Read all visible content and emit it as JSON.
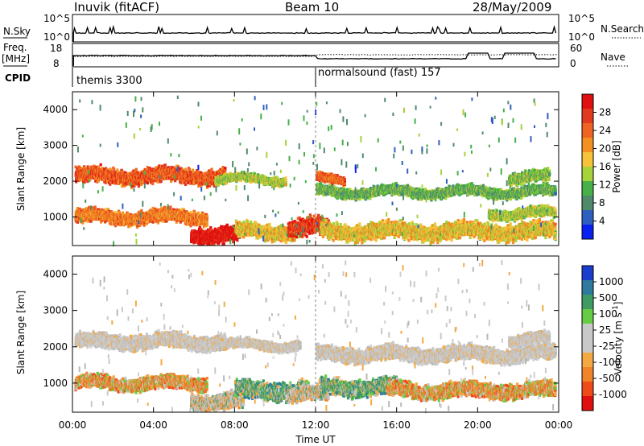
{
  "header": {
    "station": "Inuvik (fitACF)",
    "beam": "Beam 10",
    "date": "28/May/2009"
  },
  "nsky_panel": {
    "left_label": "N.Sky",
    "right_label": "N.Search",
    "left_ticks": [
      "10^5",
      "10^0"
    ],
    "right_ticks": [
      "10^5",
      "10^0"
    ]
  },
  "freq_panel": {
    "left_label_1": "Freq.",
    "left_label_2": "[MHz]",
    "right_label": "Nave",
    "left_ticks": [
      "18",
      "8"
    ],
    "right_ticks": [
      "60",
      "0"
    ]
  },
  "cpid_panel": {
    "label": "CPID",
    "modes": [
      {
        "text": "themis 3300",
        "start_hour": 0
      },
      {
        "text": "normalsound (fast) 157",
        "start_hour": 12
      }
    ]
  },
  "chart_data": [
    {
      "type": "heatmap",
      "panel": "power",
      "ylabel": "Slant Range [km]",
      "xlabel": "",
      "xlim": [
        0,
        24
      ],
      "ylim": [
        200,
        4500
      ],
      "x_ticks": [
        "00:00",
        "04:00",
        "08:00",
        "12:00",
        "16:00",
        "20:00",
        "00:00"
      ],
      "y_ticks": [
        1000,
        2000,
        3000,
        4000
      ],
      "colorbar": {
        "label": "Power [dB]",
        "ticks": [
          "4",
          "8",
          "12",
          "16",
          "20",
          "24",
          "28"
        ],
        "range": [
          0,
          32
        ],
        "colors": [
          "#0a20f0",
          "#2e5fbf",
          "#4f8a6a",
          "#47b049",
          "#a6d23a",
          "#f5c23a",
          "#f39022",
          "#ef6422",
          "#e23a1e",
          "#e01010"
        ]
      },
      "bands": [
        {
          "t0": 0.1,
          "t1": 7.5,
          "r_center": 2150,
          "r_width": 450,
          "level": 0.78
        },
        {
          "t0": 7.0,
          "t1": 10.5,
          "r_center": 2050,
          "r_width": 250,
          "level": 0.45
        },
        {
          "t0": 0.1,
          "t1": 6.6,
          "r_center": 1000,
          "r_width": 400,
          "level": 0.7
        },
        {
          "t0": 5.8,
          "t1": 8.2,
          "r_center": 500,
          "r_width": 500,
          "level": 0.97
        },
        {
          "t0": 8.0,
          "t1": 11.2,
          "r_center": 600,
          "r_width": 450,
          "level": 0.55
        },
        {
          "t0": 10.6,
          "t1": 12.6,
          "r_center": 700,
          "r_width": 550,
          "level": 0.85
        },
        {
          "t0": 12.0,
          "t1": 23.8,
          "r_center": 1700,
          "r_width": 300,
          "level": 0.35
        },
        {
          "t0": 12.0,
          "t1": 13.4,
          "r_center": 2050,
          "r_width": 250,
          "level": 0.75
        },
        {
          "t0": 12.2,
          "t1": 23.8,
          "r_center": 600,
          "r_width": 500,
          "level": 0.55
        },
        {
          "t0": 20.5,
          "t1": 23.8,
          "r_center": 1100,
          "r_width": 300,
          "level": 0.45
        },
        {
          "t0": 21.5,
          "t1": 23.5,
          "r_center": 2100,
          "r_width": 350,
          "level": 0.4
        }
      ]
    },
    {
      "type": "heatmap",
      "panel": "velocity",
      "ylabel": "Slant Range [km]",
      "xlabel": "Time UT",
      "xlim": [
        0,
        24
      ],
      "ylim": [
        200,
        4500
      ],
      "x_ticks": [
        "00:00",
        "04:00",
        "08:00",
        "12:00",
        "16:00",
        "20:00",
        "00:00"
      ],
      "y_ticks": [
        1000,
        2000,
        3000,
        4000
      ],
      "colorbar": {
        "label": "Velocity [m s^-1]",
        "ticks": [
          "1000",
          "500",
          "100",
          "25",
          "-25",
          "-100",
          "-500",
          "-1000"
        ],
        "range": [
          -1200,
          1200
        ],
        "colors": [
          "#e01010",
          "#ee4a1a",
          "#f0842a",
          "#f4a842",
          "#c8c8c8",
          "#c8c8c8",
          "#66cc44",
          "#3f9a63",
          "#2e7a9e",
          "#1a3dcc"
        ]
      },
      "bands": [
        {
          "t0": 0.1,
          "t1": 7.5,
          "r_center": 2150,
          "r_width": 450,
          "kind": "gray"
        },
        {
          "t0": 7.0,
          "t1": 11.2,
          "r_center": 2050,
          "r_width": 280,
          "kind": "gray"
        },
        {
          "t0": 0.1,
          "t1": 6.6,
          "r_center": 1000,
          "r_width": 400,
          "kind": "orange"
        },
        {
          "t0": 5.8,
          "t1": 8.4,
          "r_center": 500,
          "r_width": 500,
          "kind": "mixgray"
        },
        {
          "t0": 8.0,
          "t1": 11.6,
          "r_center": 800,
          "r_width": 550,
          "kind": "green"
        },
        {
          "t0": 10.6,
          "t1": 12.6,
          "r_center": 700,
          "r_width": 450,
          "kind": "mixgray"
        },
        {
          "t0": 12.0,
          "t1": 23.8,
          "r_center": 1800,
          "r_width": 450,
          "kind": "gray"
        },
        {
          "t0": 12.2,
          "t1": 16.0,
          "r_center": 900,
          "r_width": 500,
          "kind": "green"
        },
        {
          "t0": 15.5,
          "t1": 23.8,
          "r_center": 800,
          "r_width": 450,
          "kind": "orange"
        },
        {
          "t0": 21.5,
          "t1": 23.5,
          "r_center": 2200,
          "r_width": 350,
          "kind": "gray"
        }
      ]
    }
  ]
}
